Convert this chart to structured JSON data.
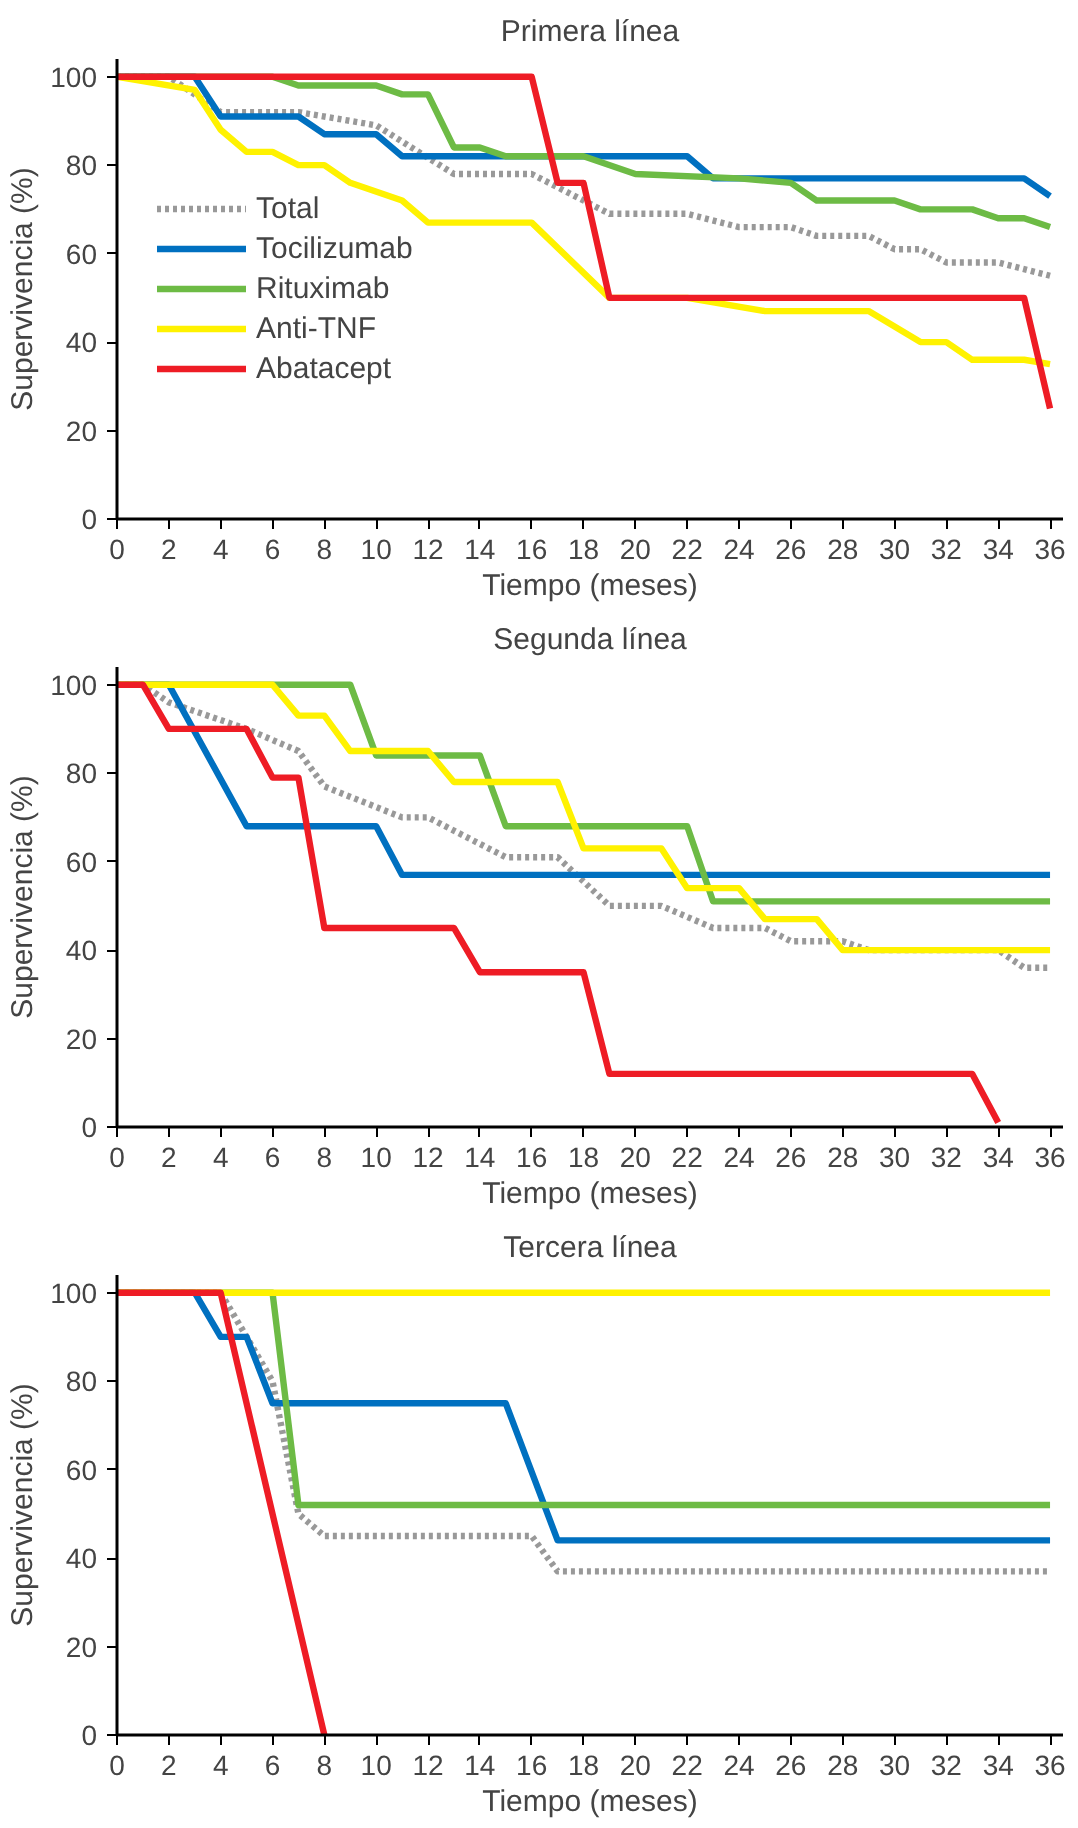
{
  "chart_data": [
    {
      "type": "line",
      "title": "Primera línea",
      "xlabel": "Tiempo (meses)",
      "ylabel": "Supervivencia (%)",
      "xlim": [
        0,
        36.5
      ],
      "ylim": [
        0,
        104
      ],
      "xticks": [
        0,
        2,
        4,
        6,
        8,
        10,
        12,
        14,
        16,
        18,
        20,
        22,
        24,
        26,
        28,
        30,
        32,
        34,
        36
      ],
      "yticks": [
        0,
        20,
        40,
        60,
        80,
        100
      ],
      "grid": false,
      "legend": "left",
      "marker": "none",
      "series": [
        {
          "name": "Total",
          "color": "#999999",
          "line_style": "dotted",
          "x": [
            0,
            2,
            4,
            7,
            10,
            13,
            16,
            19,
            22,
            24,
            26,
            27,
            29,
            30,
            31,
            32,
            34,
            36
          ],
          "values": [
            100,
            100,
            92,
            92,
            89,
            78,
            78,
            69,
            69,
            66,
            66,
            64,
            64,
            61,
            61,
            58,
            58,
            55
          ]
        },
        {
          "name": "Tocilizumab",
          "color": "#0070c0",
          "line_style": "solid",
          "x": [
            0,
            3,
            4,
            7,
            8,
            10,
            11,
            22,
            23,
            35,
            36
          ],
          "values": [
            100,
            100,
            91,
            91,
            87,
            87,
            82,
            82,
            77,
            77,
            73
          ]
        },
        {
          "name": "Rituximab",
          "color": "#6dbb45",
          "line_style": "solid",
          "x": [
            0,
            6,
            7,
            10,
            11,
            12,
            13,
            14,
            15,
            18,
            20,
            24,
            26,
            27,
            30,
            31,
            33,
            34,
            35,
            36
          ],
          "values": [
            100,
            100,
            98,
            98,
            96,
            96,
            84,
            84,
            82,
            82,
            78,
            77,
            76,
            72,
            72,
            70,
            70,
            68,
            68,
            66
          ]
        },
        {
          "name": "Anti-TNF",
          "color": "#fff200",
          "line_style": "solid",
          "x": [
            0,
            3,
            4,
            5,
            6,
            7,
            8,
            9,
            11,
            12,
            16,
            19,
            22,
            25,
            29,
            31,
            32,
            33,
            35,
            36
          ],
          "values": [
            100,
            97,
            88,
            83,
            83,
            80,
            80,
            76,
            72,
            67,
            67,
            50,
            50,
            47,
            47,
            40,
            40,
            36,
            36,
            35
          ]
        },
        {
          "name": "Abatacept",
          "color": "#ee1c25",
          "line_style": "solid",
          "x": [
            0,
            16,
            17,
            18,
            19,
            35,
            36
          ],
          "values": [
            100,
            100,
            76,
            76,
            50,
            50,
            25
          ]
        }
      ]
    },
    {
      "type": "line",
      "title": "Segunda línea",
      "xlabel": "Tiempo (meses)",
      "ylabel": "Supervivencia (%)",
      "xlim": [
        0,
        36.5
      ],
      "ylim": [
        0,
        104
      ],
      "xticks": [
        0,
        2,
        4,
        6,
        8,
        10,
        12,
        14,
        16,
        18,
        20,
        22,
        24,
        26,
        28,
        30,
        32,
        34,
        36
      ],
      "yticks": [
        0,
        20,
        40,
        60,
        80,
        100
      ],
      "grid": false,
      "legend": false,
      "marker": "none",
      "series": [
        {
          "color": "#999999",
          "line_style": "dotted",
          "x": [
            0,
            1,
            2,
            5,
            7,
            8,
            11,
            12,
            15,
            17,
            19,
            21,
            23,
            25,
            26,
            28,
            29,
            34,
            35,
            36
          ],
          "values": [
            100,
            100,
            96,
            90,
            85,
            77,
            70,
            70,
            61,
            61,
            50,
            50,
            45,
            45,
            42,
            42,
            40,
            40,
            36,
            36
          ]
        },
        {
          "color": "#0070c0",
          "line_style": "solid",
          "x": [
            0,
            2,
            5,
            10,
            11,
            36
          ],
          "values": [
            100,
            100,
            68,
            68,
            57,
            57
          ]
        },
        {
          "color": "#6dbb45",
          "line_style": "solid",
          "x": [
            0,
            9,
            10,
            14,
            15,
            22,
            23,
            36
          ],
          "values": [
            100,
            100,
            84,
            84,
            68,
            68,
            51,
            51
          ]
        },
        {
          "color": "#fff200",
          "line_style": "solid",
          "x": [
            0,
            6,
            7,
            8,
            9,
            12,
            13,
            17,
            18,
            21,
            22,
            24,
            25,
            27,
            28,
            36
          ],
          "values": [
            100,
            100,
            93,
            93,
            85,
            85,
            78,
            78,
            63,
            63,
            54,
            54,
            47,
            47,
            40,
            40
          ]
        },
        {
          "color": "#ee1c25",
          "line_style": "solid",
          "x": [
            0,
            1,
            2,
            5,
            6,
            7,
            8,
            13,
            14,
            18,
            19,
            33,
            34
          ],
          "values": [
            100,
            100,
            90,
            90,
            79,
            79,
            45,
            45,
            35,
            35,
            12,
            12,
            1
          ]
        }
      ]
    },
    {
      "type": "line",
      "title": "Tercera línea",
      "xlabel": "Tiempo (meses)",
      "ylabel": "Supervivencia (%)",
      "xlim": [
        0,
        36.5
      ],
      "ylim": [
        0,
        104
      ],
      "xticks": [
        0,
        2,
        4,
        6,
        8,
        10,
        12,
        14,
        16,
        18,
        20,
        22,
        24,
        26,
        28,
        30,
        32,
        34,
        36
      ],
      "yticks": [
        0,
        20,
        40,
        60,
        80,
        100
      ],
      "grid": false,
      "legend": false,
      "marker": "none",
      "series": [
        {
          "color": "#999999",
          "line_style": "dotted",
          "x": [
            0,
            4,
            5,
            6,
            7,
            8,
            16,
            17,
            36
          ],
          "values": [
            100,
            100,
            90,
            80,
            50,
            45,
            45,
            37,
            37
          ]
        },
        {
          "color": "#0070c0",
          "line_style": "solid",
          "x": [
            0,
            3,
            4,
            5,
            6,
            15,
            17,
            36
          ],
          "values": [
            100,
            100,
            90,
            90,
            75,
            75,
            44,
            44
          ]
        },
        {
          "color": "#6dbb45",
          "line_style": "solid",
          "x": [
            0,
            6,
            7,
            36
          ],
          "values": [
            100,
            100,
            52,
            52
          ]
        },
        {
          "color": "#fff200",
          "line_style": "solid",
          "x": [
            0,
            36
          ],
          "values": [
            100,
            100
          ]
        },
        {
          "color": "#ee1c25",
          "line_style": "solid",
          "x": [
            0,
            4,
            8
          ],
          "values": [
            100,
            100,
            0
          ]
        }
      ]
    }
  ]
}
